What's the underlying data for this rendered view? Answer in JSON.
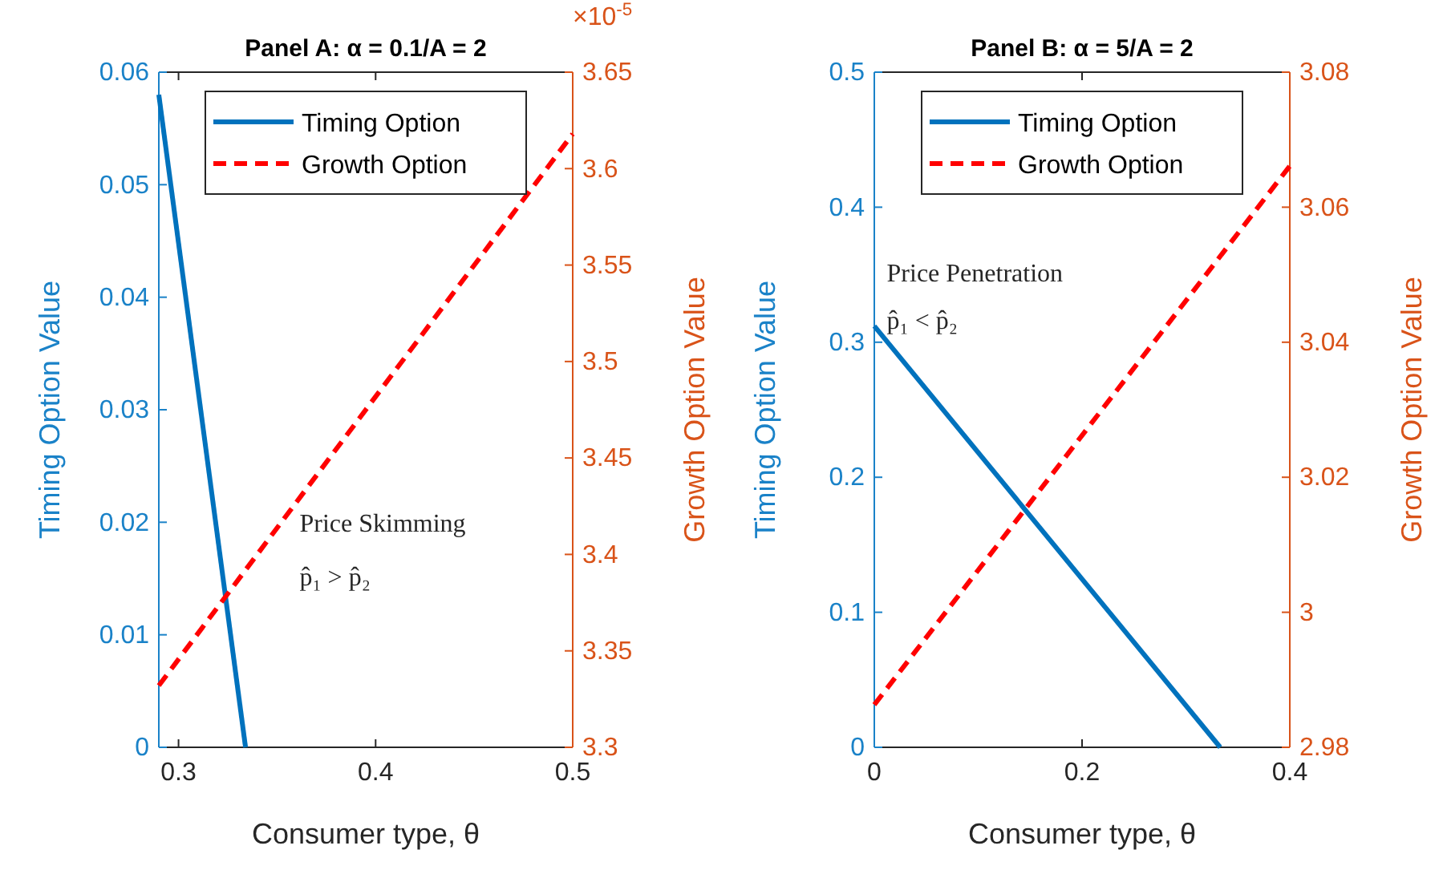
{
  "chart_data": [
    {
      "type": "line",
      "title": "Panel A: α = 0.1/A = 2",
      "xlabel": "Consumer type, θ",
      "ylabel": "Timing Option Value",
      "y2label": "Growth Option Value",
      "xlim": [
        0.29,
        0.5
      ],
      "xticks": [
        0.3,
        0.4,
        0.5
      ],
      "ylim": [
        0,
        0.06
      ],
      "yticks": [
        0,
        0.01,
        0.02,
        0.03,
        0.04,
        0.05,
        0.06
      ],
      "y2lim": [
        3.3,
        3.65
      ],
      "y2ticks": [
        3.3,
        3.35,
        3.4,
        3.45,
        3.5,
        3.55,
        3.6,
        3.65
      ],
      "grid": false,
      "legend": "top",
      "annotations": [
        "Price Skimming",
        "p̂₁ > p̂₂",
        "×10$^{-5}$"
      ],
      "series": [
        {
          "name": "Timing Option",
          "color": "#0072bd",
          "line_style": "solid",
          "x": [
            0.29,
            0.334
          ],
          "values": [
            0.058,
            0
          ]
        },
        {
          "name": "Growth Option",
          "color": "#ff0000",
          "line_style": "dashed",
          "axis": "y2",
          "x": [
            0.29,
            0.5
          ],
          "values": [
            3.332,
            3.618
          ]
        }
      ]
    },
    {
      "type": "line",
      "title": "Panel B: α = 5/A = 2",
      "xlabel": "Consumer type, θ",
      "ylabel": "Timing Option Value",
      "y2label": "Growth Option Value",
      "xlim": [
        0,
        0.4
      ],
      "xticks": [
        0,
        0.2,
        0.4
      ],
      "ylim": [
        0,
        0.5
      ],
      "yticks": [
        0,
        0.1,
        0.2,
        0.3,
        0.4,
        0.5
      ],
      "y2lim": [
        2.98,
        3.08
      ],
      "y2ticks": [
        2.98,
        3,
        3.02,
        3.04,
        3.06,
        3.08
      ],
      "grid": false,
      "legend": "top",
      "annotations": [
        "Price Penetration",
        "p̂₁ < p̂₂"
      ],
      "series": [
        {
          "name": "Timing Option",
          "color": "#0072bd",
          "line_style": "solid",
          "x": [
            0,
            0.333
          ],
          "values": [
            0.312,
            0
          ]
        },
        {
          "name": "Growth Option",
          "color": "#ff0000",
          "line_style": "dashed",
          "axis": "y2",
          "x": [
            0,
            0.4
          ],
          "values": [
            2.9863,
            3.0661
          ]
        }
      ]
    }
  ]
}
